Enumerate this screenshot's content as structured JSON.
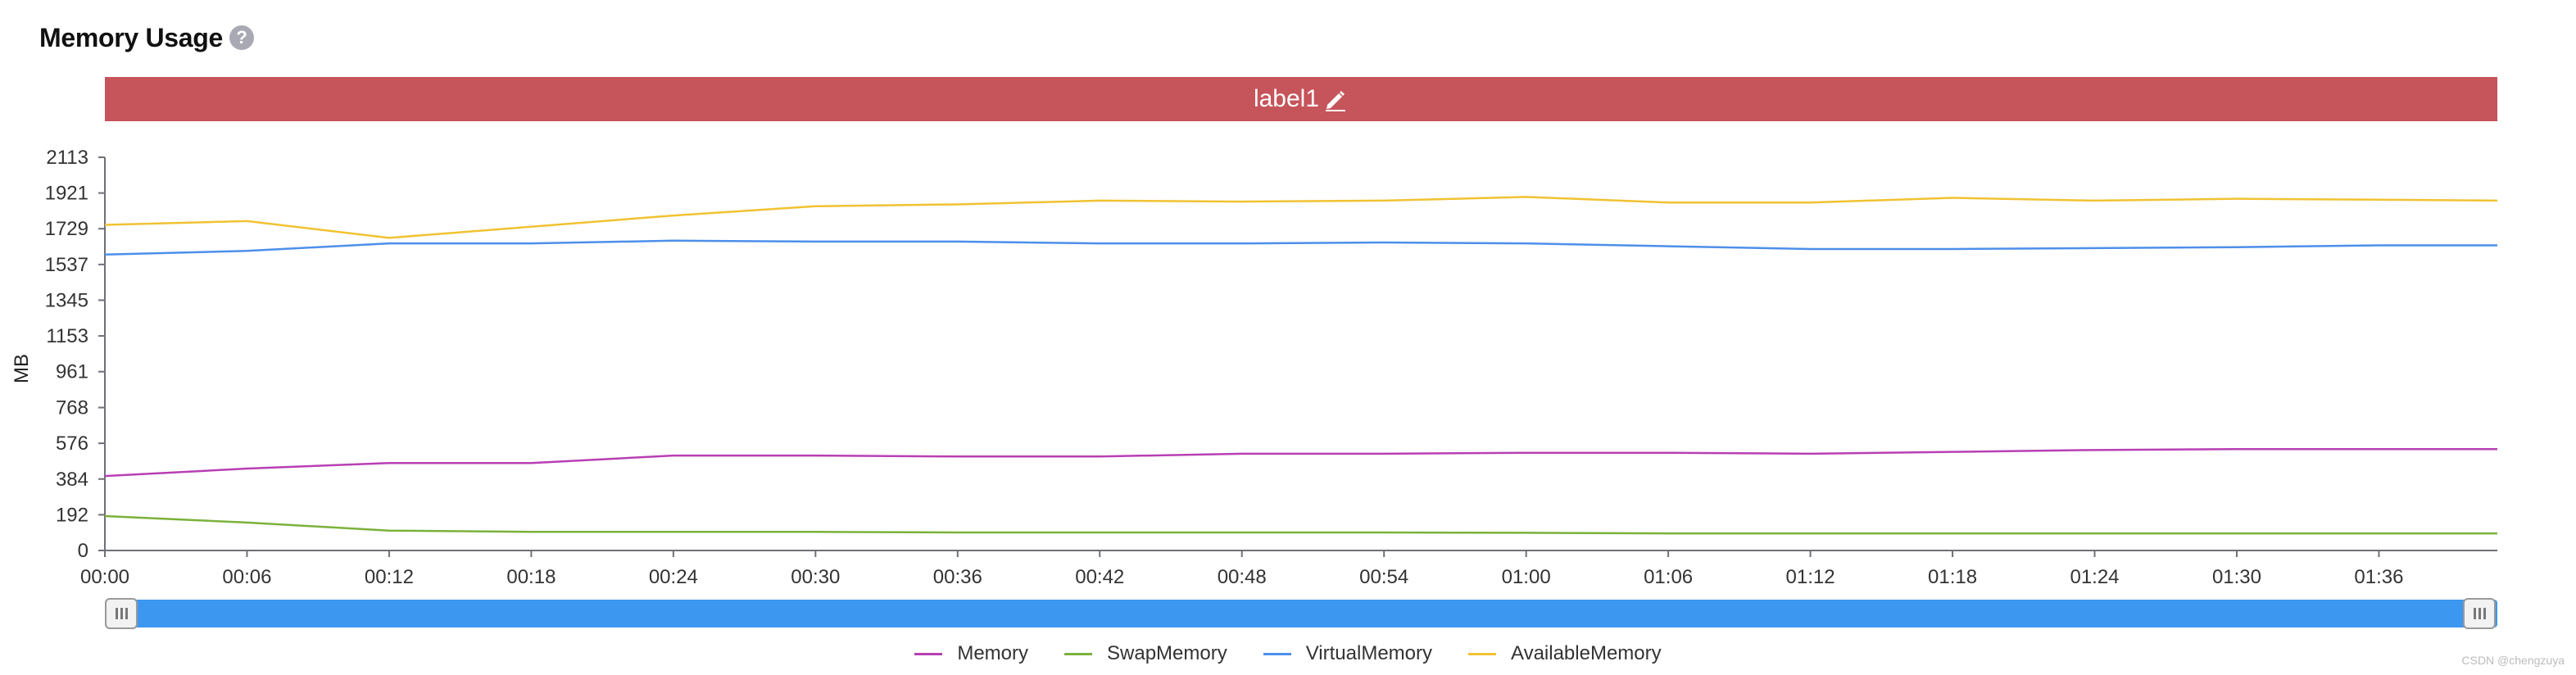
{
  "panel": {
    "title": "Memory Usage",
    "help_icon": "?"
  },
  "label_bar": {
    "text": "label1",
    "color": "#c6545b",
    "icon": "pencil-icon"
  },
  "watermark": "CSDN @chengzuya",
  "chart_data": {
    "type": "line",
    "title": "",
    "xlabel": "",
    "ylabel": "MB",
    "ylim": [
      0,
      2113
    ],
    "y_ticks": [
      "0",
      "192",
      "384",
      "576",
      "768",
      "961",
      "1153",
      "1345",
      "1537",
      "1729",
      "1921",
      "2113"
    ],
    "x_ticks": [
      "00:00",
      "00:06",
      "00:12",
      "00:18",
      "00:24",
      "00:30",
      "00:36",
      "00:42",
      "00:48",
      "00:54",
      "01:00",
      "01:06",
      "01:12",
      "01:18",
      "01:24",
      "01:30",
      "01:36"
    ],
    "x_range_minutes": [
      0,
      101
    ],
    "grid": false,
    "legend_position": "bottom-center",
    "data_zoom": {
      "start_percent": 0,
      "end_percent": 100
    },
    "x_minutes": [
      0,
      6,
      12,
      18,
      24,
      30,
      36,
      42,
      48,
      54,
      60,
      66,
      72,
      78,
      84,
      90,
      96,
      101
    ],
    "series": [
      {
        "name": "Memory",
        "color": "#b83fb4",
        "values": [
          400,
          440,
          470,
          470,
          510,
          510,
          505,
          505,
          520,
          520,
          525,
          525,
          520,
          530,
          540,
          545,
          545,
          545
        ]
      },
      {
        "name": "SwapMemory",
        "color": "#7bb13a",
        "values": [
          185,
          150,
          107,
          100,
          100,
          100,
          97,
          97,
          97,
          97,
          95,
          92,
          92,
          92,
          92,
          92,
          92,
          92
        ]
      },
      {
        "name": "VirtualMemory",
        "color": "#4d8fea",
        "values": [
          1590,
          1610,
          1650,
          1650,
          1665,
          1660,
          1660,
          1650,
          1650,
          1655,
          1650,
          1635,
          1620,
          1620,
          1625,
          1630,
          1640,
          1640
        ]
      },
      {
        "name": "AvailableMemory",
        "color": "#f1c232",
        "values": [
          1750,
          1770,
          1680,
          1740,
          1800,
          1850,
          1860,
          1880,
          1875,
          1880,
          1900,
          1870,
          1870,
          1895,
          1880,
          1890,
          1885,
          1880
        ]
      }
    ]
  }
}
